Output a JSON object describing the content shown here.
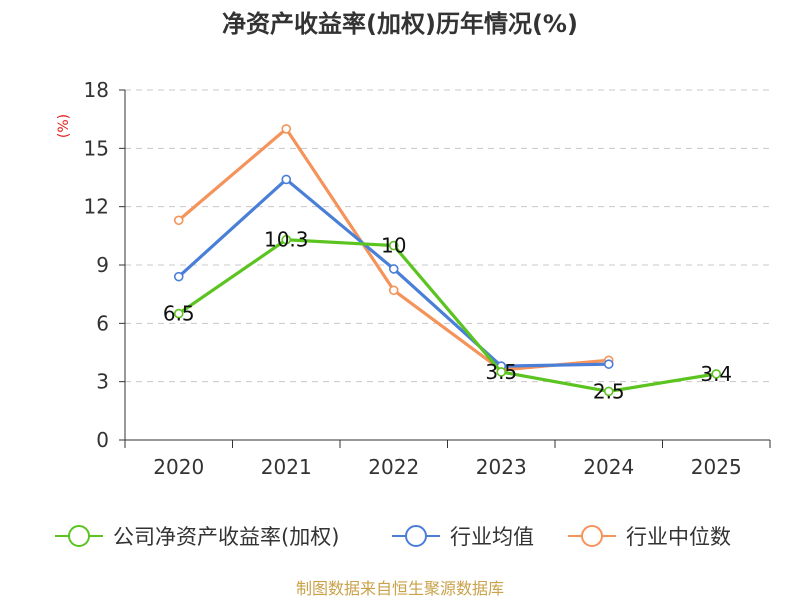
{
  "chart_data": {
    "type": "line",
    "title": "净资产收益率(加权)历年情况(%)",
    "ylabel": "(%)",
    "xlabel": "",
    "categories": [
      "2020",
      "2021",
      "2022",
      "2023",
      "2024",
      "2025"
    ],
    "ylim": [
      0,
      18
    ],
    "yticks": [
      0,
      3,
      6,
      9,
      12,
      15,
      18
    ],
    "grid": true,
    "legend_position": "bottom",
    "series": [
      {
        "name": "公司净资产收益率(加权)",
        "color": "#5cc420",
        "values": [
          6.5,
          10.3,
          10,
          3.5,
          2.5,
          3.4
        ],
        "labels": [
          "6.5",
          "10.3",
          "10",
          "3.5",
          "2.5",
          "3.4"
        ]
      },
      {
        "name": "行业均值",
        "color": "#4a7fd8",
        "values": [
          8.4,
          13.4,
          8.8,
          3.8,
          3.9,
          null
        ]
      },
      {
        "name": "行业中位数",
        "color": "#f4935a",
        "values": [
          11.3,
          16,
          7.7,
          3.6,
          4.1,
          null
        ]
      }
    ],
    "source": "制图数据来自恒生聚源数据库"
  }
}
